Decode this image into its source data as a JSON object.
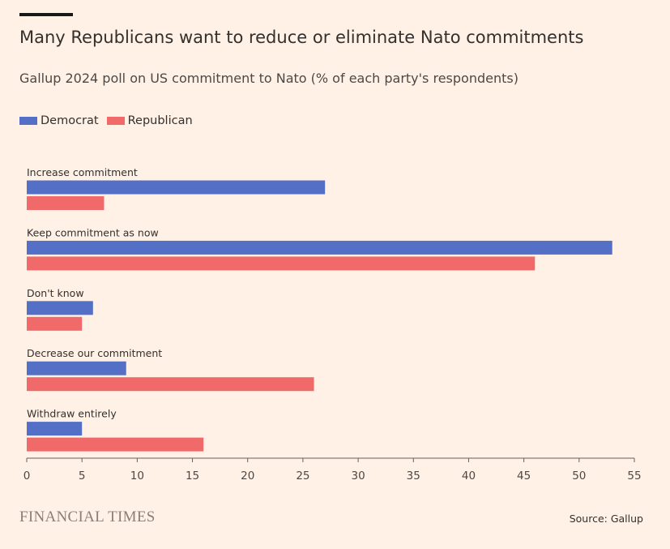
{
  "header": {
    "title": "Many Republicans want to reduce or eliminate Nato commitments",
    "subtitle": "Gallup 2024 poll on US commitment to Nato (% of each party's respondents)"
  },
  "legend": {
    "democrat": {
      "label": "Democrat",
      "color": "#5470c6"
    },
    "republican": {
      "label": "Republican",
      "color": "#f06a6a"
    }
  },
  "footer": {
    "brand": "FINANCIAL TIMES",
    "source": "Source: Gallup"
  },
  "chart_data": {
    "type": "bar",
    "orientation": "horizontal",
    "categories": [
      "Increase commitment",
      "Keep commitment as now",
      "Don't know",
      "Decrease our commitment",
      "Withdraw entirely"
    ],
    "series": [
      {
        "name": "Democrat",
        "color": "#5470c6",
        "values": [
          27,
          53,
          6,
          9,
          5
        ]
      },
      {
        "name": "Republican",
        "color": "#f06a6a",
        "values": [
          7,
          46,
          5,
          26,
          16
        ]
      }
    ],
    "xlim": [
      0,
      55
    ],
    "xticks": [
      0,
      5,
      10,
      15,
      20,
      25,
      30,
      35,
      40,
      45,
      50,
      55
    ],
    "grid": false,
    "legend_position": "top-left"
  }
}
